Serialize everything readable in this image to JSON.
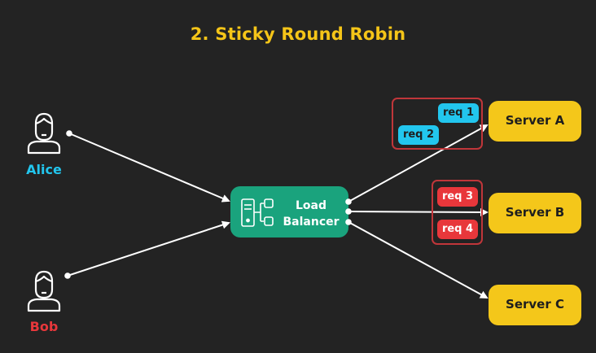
{
  "title": "2. Sticky Round Robin",
  "users": [
    {
      "name": "Alice",
      "color": "#22c6ee"
    },
    {
      "name": "Bob",
      "color": "#e8373b"
    }
  ],
  "load_balancer": {
    "label_line1": "Load",
    "label_line2": "Balancer",
    "color": "#1aa37d"
  },
  "servers": [
    {
      "name": "Server A",
      "color": "#f4c71a"
    },
    {
      "name": "Server B",
      "color": "#f4c71a"
    },
    {
      "name": "Server C",
      "color": "#f4c71a"
    }
  ],
  "requests": [
    {
      "label": "req 1",
      "color": "#22c6ee"
    },
    {
      "label": "req 2",
      "color": "#22c6ee"
    },
    {
      "label": "req 3",
      "color": "#e8373b"
    },
    {
      "label": "req 4",
      "color": "#e8373b"
    }
  ],
  "colors": {
    "background": "#232323",
    "group_border": "#c0363a",
    "arrow": "#ffffff"
  }
}
